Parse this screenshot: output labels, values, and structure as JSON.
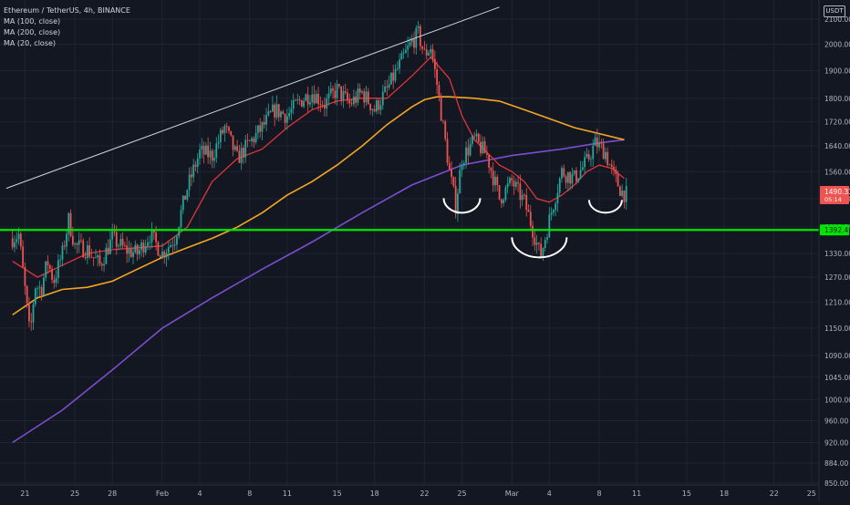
{
  "legend": {
    "title": "Ethereum / TetherUS, 4h, BINANCE",
    "ma100": "MA (100, close)",
    "ma200": "MA (200, close)",
    "ma20": "MA (20, close)"
  },
  "currency_unit": "USDT",
  "colors": {
    "background": "#131722",
    "grid": "#1f2433",
    "up": "#26a69a",
    "down": "#ef5350",
    "ma20": "#e0353b",
    "ma100": "#f5a623",
    "ma200": "#7c4dcf",
    "support": "#00e600",
    "trend": "#d1d4dc"
  },
  "chart_data": {
    "type": "candlestick",
    "title": "Ethereum / TetherUS, 4h, BINANCE",
    "y_scale": "log",
    "ylim": [
      847,
      2180
    ],
    "x_range_days": [
      "Jan 20",
      "Mar 25"
    ],
    "x_tick_labels": [
      "21",
      "25",
      "28",
      "Feb",
      "4",
      "8",
      "11",
      "15",
      "18",
      "22",
      "25",
      "Mar",
      "4",
      "8",
      "11",
      "15",
      "18",
      "22",
      "25"
    ],
    "y_tick_labels": [
      850,
      884,
      920,
      960,
      1000,
      1045,
      1090,
      1150,
      1210,
      1270,
      1330,
      1400,
      1480,
      1560,
      1640,
      1720,
      1800,
      1900,
      2000,
      2100
    ],
    "last_price_label": "1490.33",
    "last_price_sub": "05:14",
    "support_label": "1392.49",
    "support_level": 1392.49,
    "price_path": [
      {
        "day": 0,
        "price": 1370
      },
      {
        "day": 0.5,
        "price": 1380
      },
      {
        "day": 1,
        "price": 1240
      },
      {
        "day": 1.4,
        "price": 1130
      },
      {
        "day": 1.8,
        "price": 1250
      },
      {
        "day": 2.3,
        "price": 1240
      },
      {
        "day": 2.8,
        "price": 1310
      },
      {
        "day": 3.3,
        "price": 1260
      },
      {
        "day": 4,
        "price": 1330
      },
      {
        "day": 4.5,
        "price": 1420
      },
      {
        "day": 5,
        "price": 1350
      },
      {
        "day": 6,
        "price": 1340
      },
      {
        "day": 7,
        "price": 1300
      },
      {
        "day": 8,
        "price": 1370
      },
      {
        "day": 9,
        "price": 1340
      },
      {
        "day": 10,
        "price": 1330
      },
      {
        "day": 11,
        "price": 1380
      },
      {
        "day": 12,
        "price": 1330
      },
      {
        "day": 13,
        "price": 1370
      },
      {
        "day": 14,
        "price": 1510
      },
      {
        "day": 15,
        "price": 1620
      },
      {
        "day": 16,
        "price": 1610
      },
      {
        "day": 17,
        "price": 1700
      },
      {
        "day": 18,
        "price": 1600
      },
      {
        "day": 19,
        "price": 1650
      },
      {
        "day": 20,
        "price": 1700
      },
      {
        "day": 21,
        "price": 1760
      },
      {
        "day": 22,
        "price": 1740
      },
      {
        "day": 23,
        "price": 1790
      },
      {
        "day": 24,
        "price": 1820
      },
      {
        "day": 25,
        "price": 1780
      },
      {
        "day": 26,
        "price": 1830
      },
      {
        "day": 27,
        "price": 1780
      },
      {
        "day": 28,
        "price": 1820
      },
      {
        "day": 29,
        "price": 1760
      },
      {
        "day": 30,
        "price": 1830
      },
      {
        "day": 31,
        "price": 1920
      },
      {
        "day": 32,
        "price": 2010
      },
      {
        "day": 32.5,
        "price": 2040
      },
      {
        "day": 33,
        "price": 1960
      },
      {
        "day": 33.5,
        "price": 1990
      },
      {
        "day": 34,
        "price": 1850
      },
      {
        "day": 34.5,
        "price": 1700
      },
      {
        "day": 35,
        "price": 1560
      },
      {
        "day": 35.5,
        "price": 1460
      },
      {
        "day": 36,
        "price": 1600
      },
      {
        "day": 37,
        "price": 1660
      },
      {
        "day": 38,
        "price": 1610
      },
      {
        "day": 39,
        "price": 1480
      },
      {
        "day": 40,
        "price": 1530
      },
      {
        "day": 41,
        "price": 1470
      },
      {
        "day": 41.8,
        "price": 1380
      },
      {
        "day": 42.3,
        "price": 1320
      },
      {
        "day": 43,
        "price": 1420
      },
      {
        "day": 44,
        "price": 1560
      },
      {
        "day": 45,
        "price": 1540
      },
      {
        "day": 46,
        "price": 1590
      },
      {
        "day": 46.7,
        "price": 1650
      },
      {
        "day": 47.5,
        "price": 1620
      },
      {
        "day": 48,
        "price": 1560
      },
      {
        "day": 48.8,
        "price": 1500
      },
      {
        "day": 49.3,
        "price": 1490
      }
    ],
    "ma20": [
      {
        "day": 0,
        "price": 1310
      },
      {
        "day": 2,
        "price": 1270
      },
      {
        "day": 4,
        "price": 1300
      },
      {
        "day": 6,
        "price": 1330
      },
      {
        "day": 8,
        "price": 1340
      },
      {
        "day": 10,
        "price": 1345
      },
      {
        "day": 12,
        "price": 1350
      },
      {
        "day": 14,
        "price": 1400
      },
      {
        "day": 16,
        "price": 1530
      },
      {
        "day": 18,
        "price": 1600
      },
      {
        "day": 20,
        "price": 1630
      },
      {
        "day": 22,
        "price": 1700
      },
      {
        "day": 24,
        "price": 1760
      },
      {
        "day": 26,
        "price": 1790
      },
      {
        "day": 28,
        "price": 1800
      },
      {
        "day": 30,
        "price": 1800
      },
      {
        "day": 32,
        "price": 1880
      },
      {
        "day": 33.5,
        "price": 1950
      },
      {
        "day": 35,
        "price": 1870
      },
      {
        "day": 36,
        "price": 1740
      },
      {
        "day": 37,
        "price": 1660
      },
      {
        "day": 38,
        "price": 1620
      },
      {
        "day": 39,
        "price": 1580
      },
      {
        "day": 40,
        "price": 1560
      },
      {
        "day": 41,
        "price": 1530
      },
      {
        "day": 42,
        "price": 1480
      },
      {
        "day": 43,
        "price": 1470
      },
      {
        "day": 44,
        "price": 1490
      },
      {
        "day": 45,
        "price": 1520
      },
      {
        "day": 46,
        "price": 1560
      },
      {
        "day": 47,
        "price": 1580
      },
      {
        "day": 48,
        "price": 1570
      },
      {
        "day": 49,
        "price": 1540
      }
    ],
    "ma100": [
      {
        "day": 0,
        "price": 1180
      },
      {
        "day": 2,
        "price": 1220
      },
      {
        "day": 4,
        "price": 1240
      },
      {
        "day": 6,
        "price": 1245
      },
      {
        "day": 8,
        "price": 1260
      },
      {
        "day": 10,
        "price": 1290
      },
      {
        "day": 12,
        "price": 1320
      },
      {
        "day": 14,
        "price": 1345
      },
      {
        "day": 16,
        "price": 1370
      },
      {
        "day": 18,
        "price": 1400
      },
      {
        "day": 20,
        "price": 1440
      },
      {
        "day": 22,
        "price": 1490
      },
      {
        "day": 24,
        "price": 1530
      },
      {
        "day": 26,
        "price": 1580
      },
      {
        "day": 28,
        "price": 1640
      },
      {
        "day": 30,
        "price": 1710
      },
      {
        "day": 32,
        "price": 1770
      },
      {
        "day": 33,
        "price": 1795
      },
      {
        "day": 34,
        "price": 1805
      },
      {
        "day": 35,
        "price": 1805
      },
      {
        "day": 37,
        "price": 1800
      },
      {
        "day": 39,
        "price": 1790
      },
      {
        "day": 41,
        "price": 1760
      },
      {
        "day": 43,
        "price": 1730
      },
      {
        "day": 45,
        "price": 1700
      },
      {
        "day": 47,
        "price": 1680
      },
      {
        "day": 49,
        "price": 1660
      }
    ],
    "ma200": [
      {
        "day": 0,
        "price": 920
      },
      {
        "day": 4,
        "price": 980
      },
      {
        "day": 8,
        "price": 1060
      },
      {
        "day": 12,
        "price": 1150
      },
      {
        "day": 16,
        "price": 1220
      },
      {
        "day": 20,
        "price": 1290
      },
      {
        "day": 24,
        "price": 1360
      },
      {
        "day": 28,
        "price": 1440
      },
      {
        "day": 32,
        "price": 1520
      },
      {
        "day": 36,
        "price": 1580
      },
      {
        "day": 40,
        "price": 1610
      },
      {
        "day": 44,
        "price": 1630
      },
      {
        "day": 47,
        "price": 1650
      },
      {
        "day": 49,
        "price": 1660
      }
    ],
    "trend_line": [
      {
        "day": -0.5,
        "price": 1510
      },
      {
        "day": 39,
        "price": 2150
      }
    ],
    "arcs": [
      {
        "center_day": 36.0,
        "center_price": 1440,
        "rx": 20,
        "ry": 16
      },
      {
        "center_day": 42.2,
        "center_price": 1320,
        "rx": 30,
        "ry": 22
      },
      {
        "center_day": 47.5,
        "center_price": 1440,
        "rx": 18,
        "ry": 14
      }
    ]
  }
}
